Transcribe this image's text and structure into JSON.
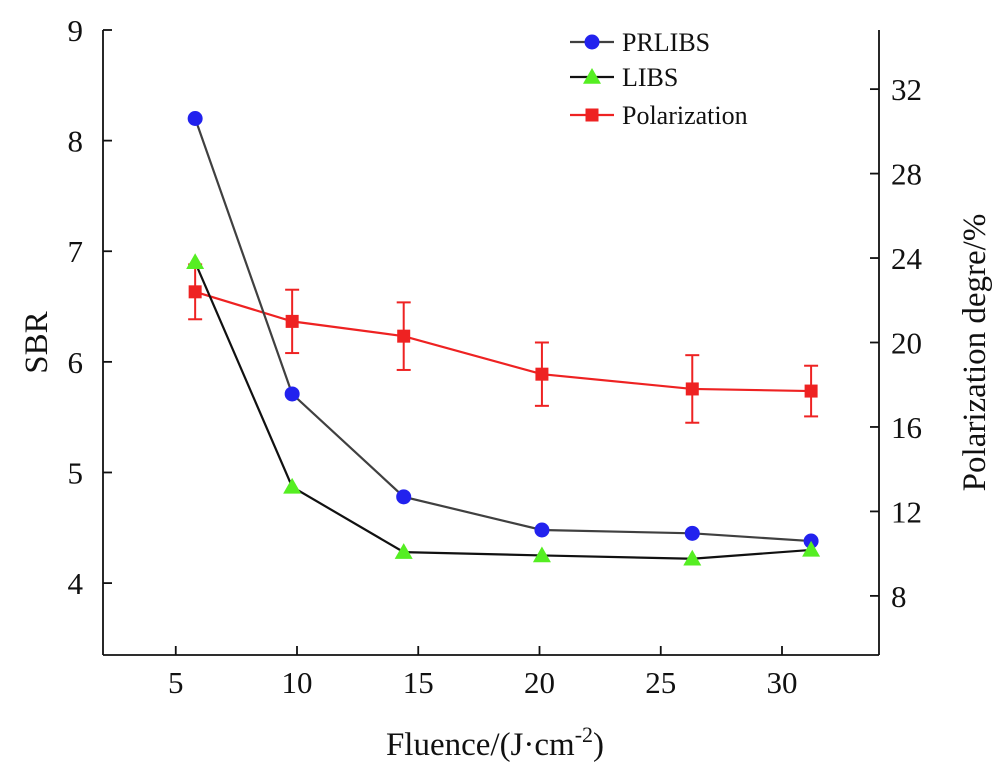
{
  "chart_data": {
    "type": "line",
    "x": [
      5.8,
      9.8,
      14.4,
      20.1,
      26.3,
      31.2
    ],
    "xlabel": {
      "main": "Fluence/(J·cm",
      "sup": "-2",
      "close": ")"
    },
    "ylabel": "SBR",
    "y2label": "Polarization degre/%",
    "xlim": [
      2,
      34
    ],
    "ylim": [
      3.35,
      9
    ],
    "y2lim": [
      5.2,
      34.8
    ],
    "xticks": [
      5,
      10,
      15,
      20,
      25,
      30
    ],
    "yticks": [
      4,
      5,
      6,
      7,
      8,
      9
    ],
    "y2ticks": [
      8,
      12,
      16,
      20,
      24,
      28,
      32
    ],
    "legend_position": "top-right",
    "series": [
      {
        "name": "PRLIBS",
        "axis": "left",
        "values": [
          8.2,
          5.71,
          4.78,
          4.48,
          4.45,
          4.38
        ],
        "line_color": "#404040",
        "marker": "circle",
        "marker_color": "#2222ee"
      },
      {
        "name": "LIBS",
        "axis": "left",
        "values": [
          6.9,
          4.87,
          4.28,
          4.25,
          4.22,
          4.3
        ],
        "line_color": "#111111",
        "marker": "triangle",
        "marker_color": "#55ee22"
      },
      {
        "name": "Polarization",
        "axis": "right",
        "values": [
          22.4,
          21.0,
          20.3,
          18.5,
          17.8,
          17.7
        ],
        "errors": [
          1.3,
          1.5,
          1.6,
          1.5,
          1.6,
          1.2
        ],
        "line_color": "#ee2222",
        "marker": "square",
        "marker_color": "#ee2222"
      }
    ]
  }
}
